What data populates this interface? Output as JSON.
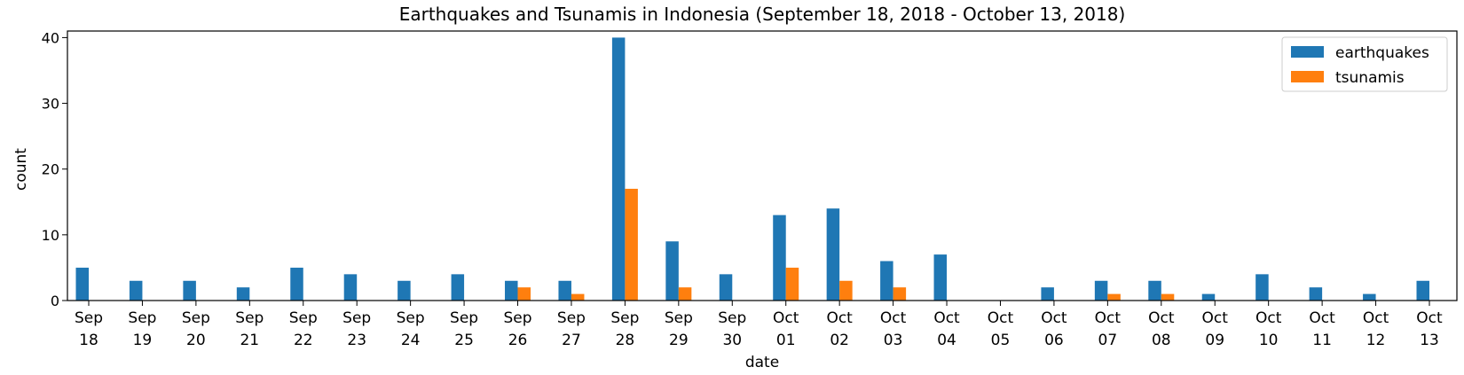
{
  "chart_data": {
    "type": "bar",
    "title": "Earthquakes and Tsunamis in Indonesia (September 18, 2018 - October 13, 2018)",
    "xlabel": "date",
    "ylabel": "count",
    "ylim": [
      0,
      41
    ],
    "yticks": [
      0,
      10,
      20,
      30,
      40
    ],
    "grid": false,
    "legend_position": "top-right",
    "categories": [
      [
        "Sep",
        "18"
      ],
      [
        "Sep",
        "19"
      ],
      [
        "Sep",
        "20"
      ],
      [
        "Sep",
        "21"
      ],
      [
        "Sep",
        "22"
      ],
      [
        "Sep",
        "23"
      ],
      [
        "Sep",
        "24"
      ],
      [
        "Sep",
        "25"
      ],
      [
        "Sep",
        "26"
      ],
      [
        "Sep",
        "27"
      ],
      [
        "Sep",
        "28"
      ],
      [
        "Sep",
        "29"
      ],
      [
        "Sep",
        "30"
      ],
      [
        "Oct",
        "01"
      ],
      [
        "Oct",
        "02"
      ],
      [
        "Oct",
        "03"
      ],
      [
        "Oct",
        "04"
      ],
      [
        "Oct",
        "05"
      ],
      [
        "Oct",
        "06"
      ],
      [
        "Oct",
        "07"
      ],
      [
        "Oct",
        "08"
      ],
      [
        "Oct",
        "09"
      ],
      [
        "Oct",
        "10"
      ],
      [
        "Oct",
        "11"
      ],
      [
        "Oct",
        "12"
      ],
      [
        "Oct",
        "13"
      ]
    ],
    "series": [
      {
        "name": "earthquakes",
        "color": "#1f77b4",
        "values": [
          5,
          3,
          3,
          2,
          5,
          4,
          3,
          4,
          3,
          3,
          40,
          9,
          4,
          13,
          14,
          6,
          7,
          0,
          2,
          3,
          3,
          1,
          4,
          2,
          1,
          3
        ]
      },
      {
        "name": "tsunamis",
        "color": "#ff7f0e",
        "values": [
          0,
          0,
          0,
          0,
          0,
          0,
          0,
          0,
          2,
          1,
          17,
          2,
          0,
          5,
          3,
          2,
          0,
          0,
          0,
          1,
          1,
          0,
          0,
          0,
          0,
          0
        ]
      }
    ]
  }
}
